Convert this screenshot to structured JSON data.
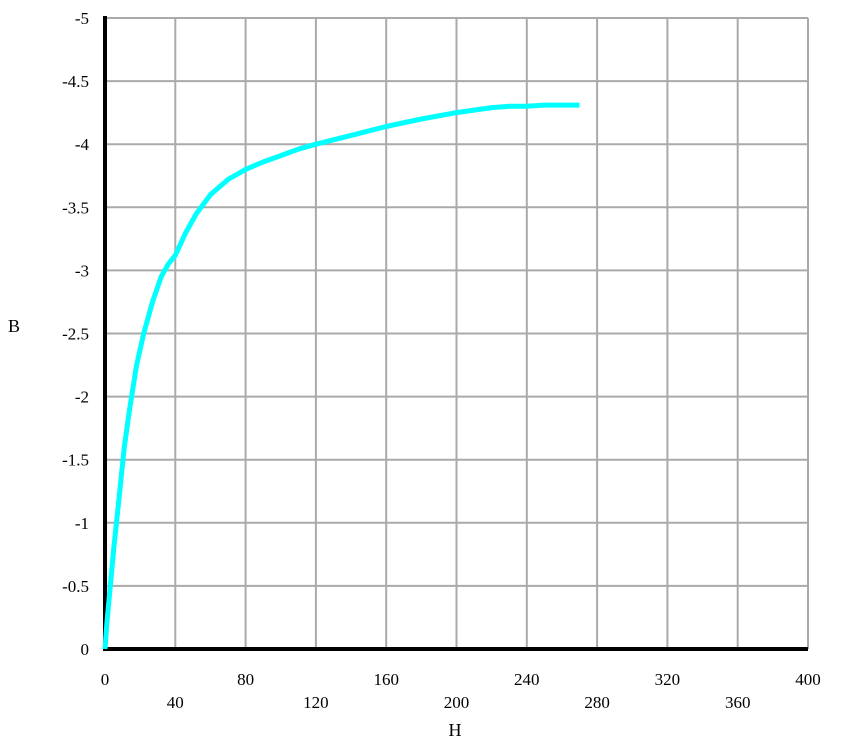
{
  "chart_data": {
    "type": "line",
    "xlabel": "H",
    "ylabel": "B",
    "xlim": [
      0,
      400
    ],
    "ylim": [
      0,
      -5
    ],
    "y_axis_inverted": true,
    "grid": true,
    "legend": "none",
    "x_ticks": [
      {
        "value": 0,
        "label": "0"
      },
      {
        "value": 40,
        "label": "40"
      },
      {
        "value": 80,
        "label": "80"
      },
      {
        "value": 120,
        "label": "120"
      },
      {
        "value": 160,
        "label": "160"
      },
      {
        "value": 200,
        "label": "200"
      },
      {
        "value": 240,
        "label": "240"
      },
      {
        "value": 280,
        "label": "280"
      },
      {
        "value": 320,
        "label": "320"
      },
      {
        "value": 360,
        "label": "360"
      },
      {
        "value": 400,
        "label": "400"
      }
    ],
    "y_ticks": [
      {
        "value": 0,
        "label": "0"
      },
      {
        "value": -0.5,
        "label": "-0.5"
      },
      {
        "value": -1,
        "label": "-1"
      },
      {
        "value": -1.5,
        "label": "-1.5"
      },
      {
        "value": -2,
        "label": "-2"
      },
      {
        "value": -2.5,
        "label": "-2.5"
      },
      {
        "value": -3,
        "label": "-3"
      },
      {
        "value": -3.5,
        "label": "-3.5"
      },
      {
        "value": -4,
        "label": "-4"
      },
      {
        "value": -4.5,
        "label": "-4.5"
      },
      {
        "value": -5,
        "label": "-5"
      }
    ],
    "series": [
      {
        "color": "#00FFFF",
        "x": [
          0,
          1,
          3,
          5,
          8,
          11,
          14,
          18,
          22,
          27,
          32,
          36,
          40,
          46,
          52,
          60,
          70,
          80,
          90,
          100,
          110,
          120,
          140,
          160,
          180,
          200,
          210,
          220,
          230,
          240,
          250,
          260,
          270
        ],
        "y": [
          0,
          -0.2,
          -0.5,
          -0.8,
          -1.2,
          -1.6,
          -1.9,
          -2.25,
          -2.5,
          -2.75,
          -2.95,
          -3.05,
          -3.12,
          -3.3,
          -3.45,
          -3.6,
          -3.72,
          -3.8,
          -3.86,
          -3.91,
          -3.96,
          -4.0,
          -4.07,
          -4.14,
          -4.2,
          -4.25,
          -4.27,
          -4.29,
          -4.3,
          -4.3,
          -4.31,
          -4.31,
          -4.31
        ]
      }
    ]
  },
  "colors": {
    "background": "#FFFFFF",
    "grid": "#AAAAAA",
    "axis": "#000000",
    "line": "#00FFFF"
  }
}
